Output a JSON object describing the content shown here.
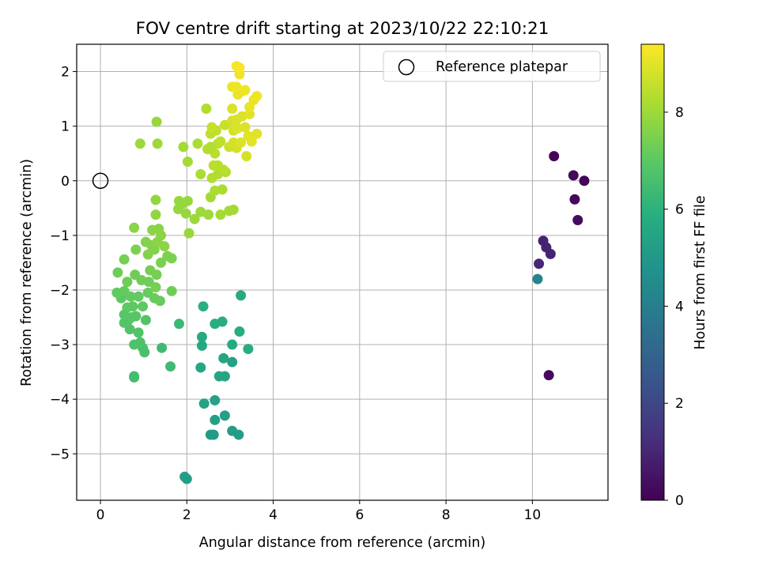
{
  "chart_data": {
    "type": "scatter",
    "title": "FOV centre drift starting at 2023/10/22 22:10:21",
    "xlabel": "Angular distance from reference (arcmin)",
    "ylabel": "Rotation from reference (arcmin)",
    "xlim": [
      -0.55,
      11.75
    ],
    "ylim": [
      -5.85,
      2.5
    ],
    "xticks": [
      0,
      2,
      4,
      6,
      8,
      10
    ],
    "yticks": [
      2,
      1,
      0,
      -1,
      -2,
      -3,
      -4,
      -5
    ],
    "grid": true,
    "legend": {
      "position": "top-right",
      "entries": [
        "Reference platepar"
      ]
    },
    "colorbar": {
      "label": "Hours from first FF file",
      "min": 0,
      "max": 9.4,
      "ticks": [
        0,
        2,
        4,
        6,
        8
      ],
      "colormap": "viridis"
    },
    "reference_point": {
      "x": 0,
      "y": 0,
      "label": "Reference platepar"
    },
    "points": [
      {
        "x": 10.5,
        "y": 0.45,
        "c": 0.1
      },
      {
        "x": 10.95,
        "y": 0.1,
        "c": 0.2
      },
      {
        "x": 11.2,
        "y": 0.0,
        "c": 0.1
      },
      {
        "x": 10.98,
        "y": -0.34,
        "c": 0.2
      },
      {
        "x": 11.05,
        "y": -0.72,
        "c": 0.3
      },
      {
        "x": 10.25,
        "y": -1.1,
        "c": 0.9
      },
      {
        "x": 10.32,
        "y": -1.22,
        "c": 0.9
      },
      {
        "x": 10.42,
        "y": -1.34,
        "c": 0.9
      },
      {
        "x": 10.15,
        "y": -1.52,
        "c": 1.0
      },
      {
        "x": 10.12,
        "y": -1.8,
        "c": 4.2
      },
      {
        "x": 10.38,
        "y": -3.56,
        "c": 0.2
      },
      {
        "x": 1.95,
        "y": -5.42,
        "c": 5.2
      },
      {
        "x": 2.0,
        "y": -5.46,
        "c": 5.2
      },
      {
        "x": 2.55,
        "y": -4.65,
        "c": 5.1
      },
      {
        "x": 2.62,
        "y": -4.65,
        "c": 5.1
      },
      {
        "x": 3.05,
        "y": -4.58,
        "c": 5.2
      },
      {
        "x": 3.2,
        "y": -4.65,
        "c": 5.2
      },
      {
        "x": 2.65,
        "y": -4.38,
        "c": 5.3
      },
      {
        "x": 2.88,
        "y": -4.3,
        "c": 5.3
      },
      {
        "x": 2.4,
        "y": -4.08,
        "c": 5.4
      },
      {
        "x": 2.65,
        "y": -4.02,
        "c": 5.4
      },
      {
        "x": 2.75,
        "y": -3.58,
        "c": 5.5
      },
      {
        "x": 2.88,
        "y": -3.58,
        "c": 5.5
      },
      {
        "x": 2.85,
        "y": -3.25,
        "c": 5.5
      },
      {
        "x": 3.05,
        "y": -3.32,
        "c": 5.4
      },
      {
        "x": 2.32,
        "y": -3.42,
        "c": 5.6
      },
      {
        "x": 2.35,
        "y": -3.02,
        "c": 5.6
      },
      {
        "x": 2.35,
        "y": -2.86,
        "c": 5.7
      },
      {
        "x": 2.65,
        "y": -2.62,
        "c": 5.8
      },
      {
        "x": 2.82,
        "y": -2.58,
        "c": 5.8
      },
      {
        "x": 3.05,
        "y": -3.0,
        "c": 5.7
      },
      {
        "x": 3.22,
        "y": -2.76,
        "c": 5.8
      },
      {
        "x": 3.42,
        "y": -3.08,
        "c": 5.8
      },
      {
        "x": 3.25,
        "y": -2.1,
        "c": 5.7
      },
      {
        "x": 2.38,
        "y": -2.3,
        "c": 5.9
      },
      {
        "x": 1.82,
        "y": -2.62,
        "c": 6.3
      },
      {
        "x": 1.62,
        "y": -3.4,
        "c": 6.4
      },
      {
        "x": 1.42,
        "y": -3.06,
        "c": 6.4
      },
      {
        "x": 0.78,
        "y": -3.58,
        "c": 6.5
      },
      {
        "x": 0.78,
        "y": -3.6,
        "c": 6.5
      },
      {
        "x": 1.02,
        "y": -3.14,
        "c": 6.6
      },
      {
        "x": 0.98,
        "y": -3.06,
        "c": 6.6
      },
      {
        "x": 0.78,
        "y": -3.0,
        "c": 6.7
      },
      {
        "x": 0.92,
        "y": -2.96,
        "c": 6.7
      },
      {
        "x": 0.68,
        "y": -2.72,
        "c": 6.8
      },
      {
        "x": 0.55,
        "y": -2.6,
        "c": 6.8
      },
      {
        "x": 0.65,
        "y": -2.55,
        "c": 6.8
      },
      {
        "x": 0.72,
        "y": -2.5,
        "c": 6.9
      },
      {
        "x": 0.88,
        "y": -2.78,
        "c": 6.8
      },
      {
        "x": 0.82,
        "y": -2.48,
        "c": 6.9
      },
      {
        "x": 1.05,
        "y": -2.55,
        "c": 6.8
      },
      {
        "x": 0.55,
        "y": -2.45,
        "c": 6.9
      },
      {
        "x": 0.62,
        "y": -2.32,
        "c": 7.0
      },
      {
        "x": 0.75,
        "y": -2.3,
        "c": 7.0
      },
      {
        "x": 0.48,
        "y": -2.15,
        "c": 7.0
      },
      {
        "x": 0.38,
        "y": -2.05,
        "c": 7.1
      },
      {
        "x": 0.55,
        "y": -2.02,
        "c": 7.1
      },
      {
        "x": 0.7,
        "y": -2.12,
        "c": 7.1
      },
      {
        "x": 0.88,
        "y": -2.12,
        "c": 7.1
      },
      {
        "x": 0.98,
        "y": -2.3,
        "c": 7.0
      },
      {
        "x": 1.1,
        "y": -2.05,
        "c": 7.2
      },
      {
        "x": 1.25,
        "y": -2.15,
        "c": 7.2
      },
      {
        "x": 1.38,
        "y": -2.2,
        "c": 7.2
      },
      {
        "x": 1.65,
        "y": -2.02,
        "c": 7.3
      },
      {
        "x": 0.62,
        "y": -1.85,
        "c": 7.3
      },
      {
        "x": 0.8,
        "y": -1.72,
        "c": 7.3
      },
      {
        "x": 0.95,
        "y": -1.82,
        "c": 7.3
      },
      {
        "x": 1.12,
        "y": -1.85,
        "c": 7.3
      },
      {
        "x": 1.28,
        "y": -1.95,
        "c": 7.4
      },
      {
        "x": 0.4,
        "y": -1.68,
        "c": 7.3
      },
      {
        "x": 0.55,
        "y": -1.44,
        "c": 7.4
      },
      {
        "x": 0.82,
        "y": -1.26,
        "c": 7.5
      },
      {
        "x": 1.15,
        "y": -1.64,
        "c": 7.4
      },
      {
        "x": 1.3,
        "y": -1.72,
        "c": 7.4
      },
      {
        "x": 1.4,
        "y": -1.5,
        "c": 7.5
      },
      {
        "x": 1.55,
        "y": -1.38,
        "c": 7.5
      },
      {
        "x": 1.65,
        "y": -1.42,
        "c": 7.5
      },
      {
        "x": 1.1,
        "y": -1.35,
        "c": 7.6
      },
      {
        "x": 1.25,
        "y": -1.26,
        "c": 7.6
      },
      {
        "x": 1.05,
        "y": -1.12,
        "c": 7.6
      },
      {
        "x": 1.18,
        "y": -1.18,
        "c": 7.6
      },
      {
        "x": 1.32,
        "y": -1.12,
        "c": 7.7
      },
      {
        "x": 1.48,
        "y": -1.2,
        "c": 7.7
      },
      {
        "x": 1.2,
        "y": -0.9,
        "c": 7.7
      },
      {
        "x": 1.35,
        "y": -0.88,
        "c": 7.7
      },
      {
        "x": 1.4,
        "y": -1.0,
        "c": 7.7
      },
      {
        "x": 0.78,
        "y": -0.86,
        "c": 7.7
      },
      {
        "x": 1.28,
        "y": -0.62,
        "c": 7.8
      },
      {
        "x": 1.28,
        "y": -0.35,
        "c": 7.8
      },
      {
        "x": 1.8,
        "y": -0.52,
        "c": 7.9
      },
      {
        "x": 1.9,
        "y": -0.42,
        "c": 7.9
      },
      {
        "x": 1.98,
        "y": -0.6,
        "c": 7.9
      },
      {
        "x": 1.82,
        "y": -0.37,
        "c": 7.9
      },
      {
        "x": 2.02,
        "y": -0.37,
        "c": 7.9
      },
      {
        "x": 2.18,
        "y": -0.7,
        "c": 8.0
      },
      {
        "x": 2.05,
        "y": -0.96,
        "c": 7.9
      },
      {
        "x": 2.32,
        "y": -0.57,
        "c": 8.0
      },
      {
        "x": 2.5,
        "y": -0.62,
        "c": 8.0
      },
      {
        "x": 2.55,
        "y": -0.3,
        "c": 8.1
      },
      {
        "x": 2.78,
        "y": -0.62,
        "c": 8.1
      },
      {
        "x": 2.98,
        "y": -0.55,
        "c": 8.1
      },
      {
        "x": 3.08,
        "y": -0.53,
        "c": 8.1
      },
      {
        "x": 2.65,
        "y": -0.18,
        "c": 8.2
      },
      {
        "x": 2.82,
        "y": -0.16,
        "c": 8.2
      },
      {
        "x": 2.02,
        "y": 0.35,
        "c": 8.1
      },
      {
        "x": 2.32,
        "y": 0.12,
        "c": 8.2
      },
      {
        "x": 2.58,
        "y": 0.05,
        "c": 8.3
      },
      {
        "x": 2.72,
        "y": 0.12,
        "c": 8.3
      },
      {
        "x": 2.9,
        "y": 0.16,
        "c": 8.3
      },
      {
        "x": 2.62,
        "y": 0.28,
        "c": 8.4
      },
      {
        "x": 2.72,
        "y": 0.28,
        "c": 8.4
      },
      {
        "x": 2.85,
        "y": 0.2,
        "c": 8.4
      },
      {
        "x": 0.92,
        "y": 0.68,
        "c": 8.0
      },
      {
        "x": 1.32,
        "y": 0.68,
        "c": 8.0
      },
      {
        "x": 1.92,
        "y": 0.62,
        "c": 8.1
      },
      {
        "x": 2.25,
        "y": 0.68,
        "c": 8.2
      },
      {
        "x": 2.48,
        "y": 0.58,
        "c": 8.3
      },
      {
        "x": 2.55,
        "y": 0.62,
        "c": 8.3
      },
      {
        "x": 2.65,
        "y": 0.5,
        "c": 8.4
      },
      {
        "x": 2.72,
        "y": 0.68,
        "c": 8.4
      },
      {
        "x": 2.78,
        "y": 0.72,
        "c": 8.5
      },
      {
        "x": 2.55,
        "y": 0.86,
        "c": 8.5
      },
      {
        "x": 2.68,
        "y": 0.92,
        "c": 8.5
      },
      {
        "x": 1.3,
        "y": 1.08,
        "c": 7.9
      },
      {
        "x": 2.45,
        "y": 1.32,
        "c": 8.3
      },
      {
        "x": 2.58,
        "y": 0.98,
        "c": 8.6
      },
      {
        "x": 2.88,
        "y": 1.02,
        "c": 8.6
      },
      {
        "x": 2.98,
        "y": 0.62,
        "c": 8.7
      },
      {
        "x": 3.08,
        "y": 0.7,
        "c": 8.8
      },
      {
        "x": 3.15,
        "y": 0.6,
        "c": 8.8
      },
      {
        "x": 3.25,
        "y": 0.7,
        "c": 8.9
      },
      {
        "x": 3.38,
        "y": 0.45,
        "c": 8.8
      },
      {
        "x": 3.5,
        "y": 0.72,
        "c": 9.0
      },
      {
        "x": 3.42,
        "y": 0.82,
        "c": 9.0
      },
      {
        "x": 3.62,
        "y": 0.86,
        "c": 9.0
      },
      {
        "x": 3.08,
        "y": 0.92,
        "c": 8.8
      },
      {
        "x": 3.18,
        "y": 0.96,
        "c": 8.9
      },
      {
        "x": 3.35,
        "y": 0.98,
        "c": 8.9
      },
      {
        "x": 3.05,
        "y": 1.1,
        "c": 8.8
      },
      {
        "x": 3.15,
        "y": 1.12,
        "c": 8.9
      },
      {
        "x": 3.28,
        "y": 1.18,
        "c": 8.9
      },
      {
        "x": 3.45,
        "y": 1.22,
        "c": 9.0
      },
      {
        "x": 3.05,
        "y": 1.32,
        "c": 8.9
      },
      {
        "x": 3.45,
        "y": 1.35,
        "c": 9.1
      },
      {
        "x": 3.55,
        "y": 1.48,
        "c": 9.1
      },
      {
        "x": 3.62,
        "y": 1.55,
        "c": 9.2
      },
      {
        "x": 3.18,
        "y": 1.58,
        "c": 9.1
      },
      {
        "x": 3.28,
        "y": 1.64,
        "c": 9.1
      },
      {
        "x": 3.35,
        "y": 1.66,
        "c": 9.2
      },
      {
        "x": 3.05,
        "y": 1.72,
        "c": 9.1
      },
      {
        "x": 3.15,
        "y": 1.72,
        "c": 9.2
      },
      {
        "x": 3.22,
        "y": 1.95,
        "c": 9.2
      },
      {
        "x": 3.15,
        "y": 2.1,
        "c": 9.3
      },
      {
        "x": 3.22,
        "y": 2.07,
        "c": 9.3
      }
    ]
  }
}
